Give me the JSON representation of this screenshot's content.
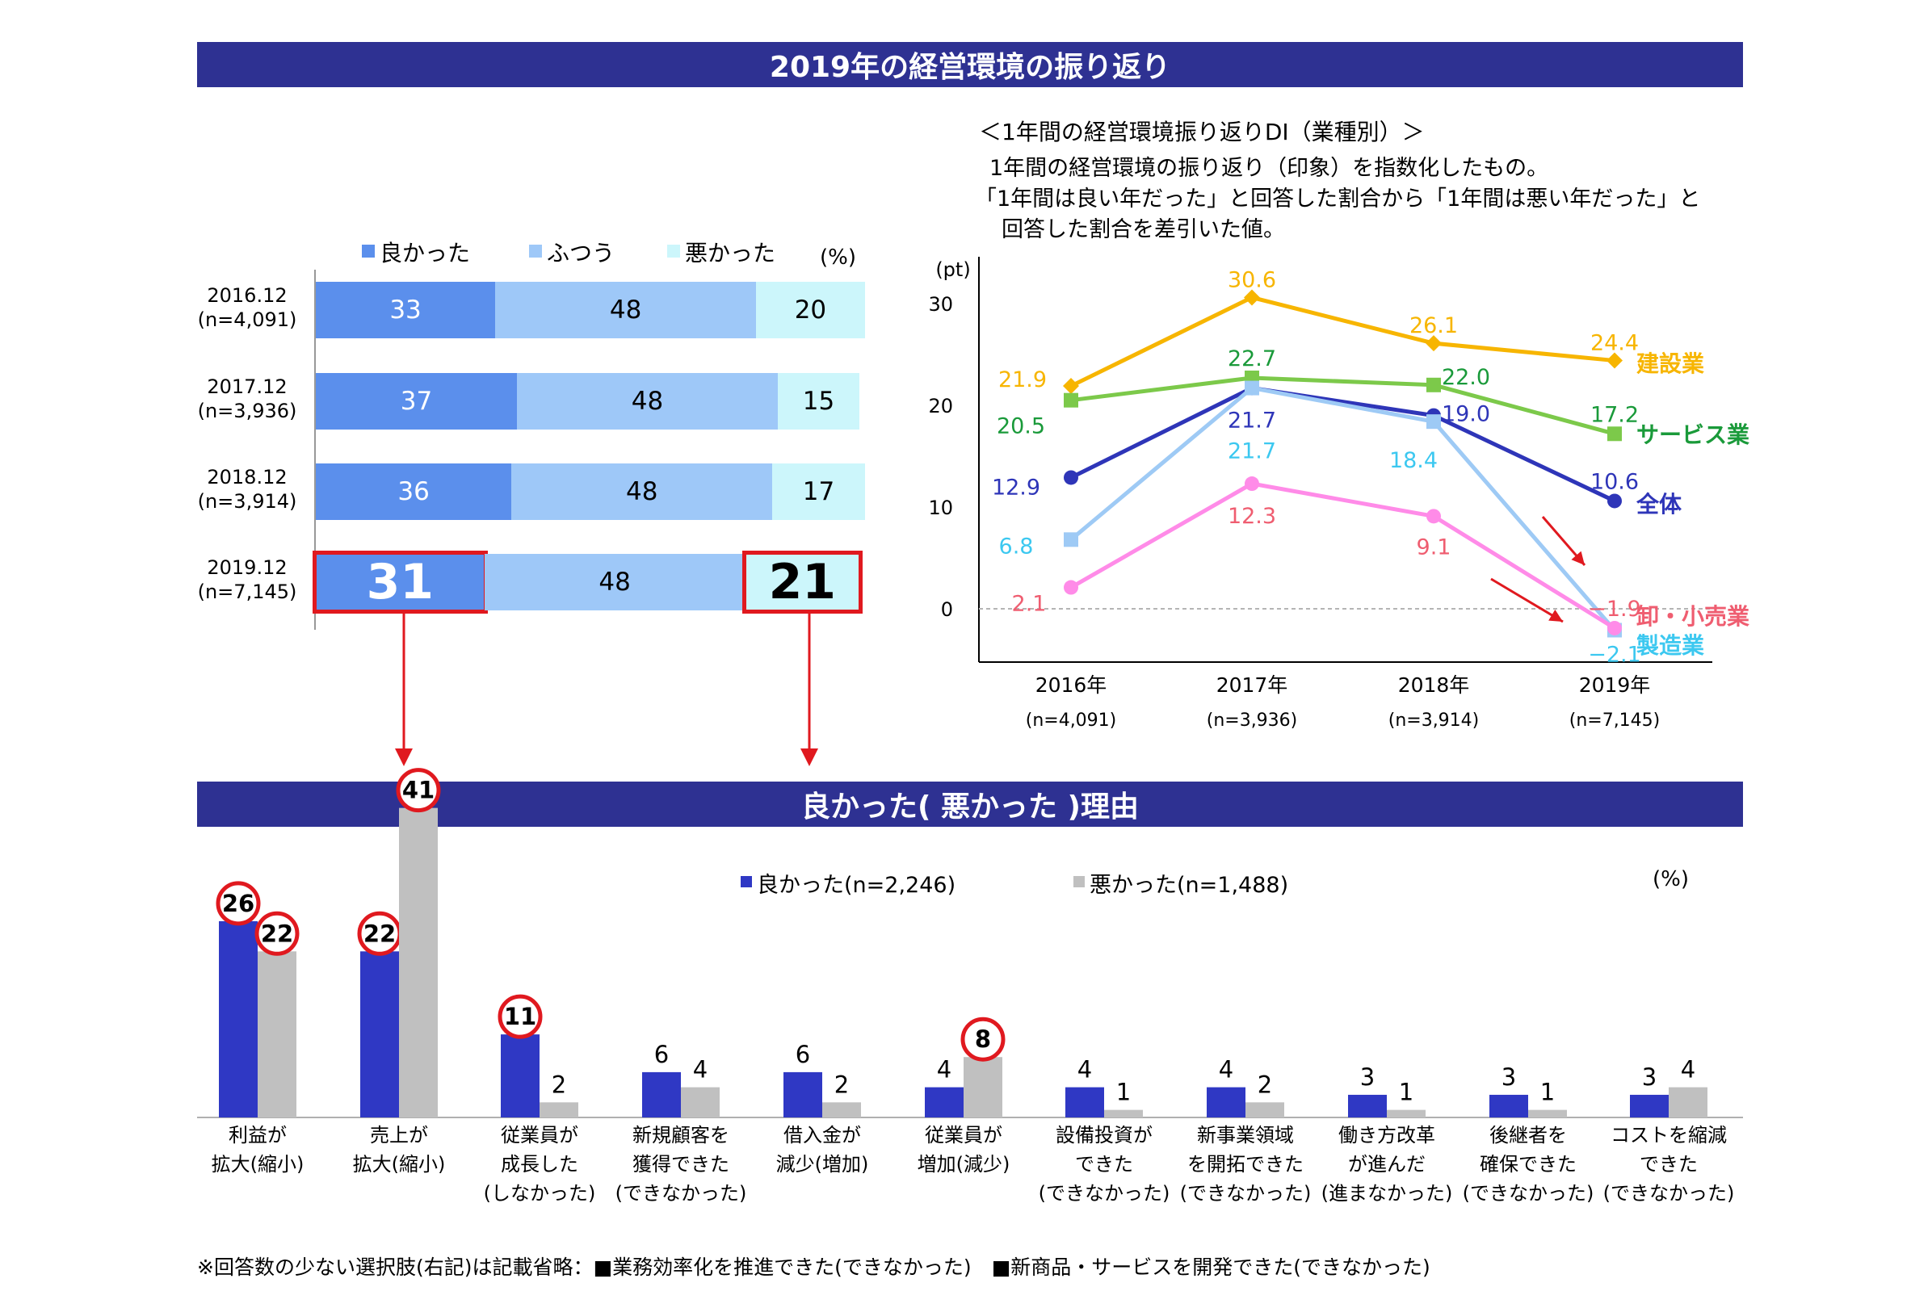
{
  "top_banner": "2019年の経営環境の振り返り",
  "bottom_banner": "良かった( 悪かった )理由",
  "footnote": "※回答数の少ない選択肢(右記)は記載省略：■業務効率化を推進できた(できなかった)　■新商品・サービスを開発できた(できなかった)",
  "colors": {
    "banner": "#2e3192",
    "good": "#5b8fec",
    "neutral": "#9ec8f8",
    "bad": "#ccf6fb",
    "highlight": "#e0191f",
    "good2": "#2f38c4",
    "bad2": "#c0c0c0"
  },
  "chart_data": [
    {
      "type": "bar",
      "orientation": "horizontal-stacked",
      "legend": [
        "良かった",
        "ふつう",
        "悪かった"
      ],
      "unit": "(%)",
      "categories": [
        "2016.12",
        "2017.12",
        "2018.12",
        "2019.12"
      ],
      "category_n": [
        "(n=4,091)",
        "(n=3,936)",
        "(n=3,914)",
        "(n=7,145)"
      ],
      "series": [
        {
          "name": "良かった",
          "values": [
            33,
            37,
            36,
            31
          ]
        },
        {
          "name": "ふつう",
          "values": [
            48,
            48,
            48,
            48
          ]
        },
        {
          "name": "悪かった",
          "values": [
            20,
            15,
            17,
            21
          ]
        }
      ],
      "highlighted": [
        "31",
        "21"
      ]
    },
    {
      "type": "line",
      "title": "＜1年間の経営環境振り返りDI（業種別）＞",
      "description": [
        "1年間の経営環境の振り返り（印象）を指数化したもの。",
        "「1年間は良い年だった」と回答した割合から「1年間は悪い年だった」と",
        "回答した割合を差引いた値。"
      ],
      "ylabel": "(pt)",
      "ylim": [
        -5,
        35
      ],
      "yticks": [
        "30",
        "20",
        "10",
        "0"
      ],
      "x": [
        "2016年",
        "2017年",
        "2018年",
        "2019年"
      ],
      "x_n": [
        "(n=4,091)",
        "(n=3,936)",
        "(n=3,914)",
        "(n=7,145)"
      ],
      "series": [
        {
          "name": "建設業",
          "color": "#f7b500",
          "marker": "diamond",
          "values": [
            21.9,
            30.6,
            26.1,
            24.4
          ],
          "labels": [
            "21.9",
            "30.6",
            "26.1",
            "24.4"
          ]
        },
        {
          "name": "サービス業",
          "color": "#7cc94a",
          "marker": "square",
          "label_color": "#1a9a3a",
          "values": [
            20.5,
            22.7,
            22.0,
            17.2
          ],
          "labels": [
            "20.5",
            "22.7",
            "22.0",
            "17.2"
          ]
        },
        {
          "name": "全体",
          "color": "#2e35b8",
          "marker": "circle",
          "values": [
            12.9,
            21.7,
            19.0,
            10.6
          ],
          "labels": [
            "12.9",
            "21.7",
            "19.0",
            "10.6"
          ]
        },
        {
          "name": "製造業",
          "color": "#9ecaf5",
          "marker": "square",
          "label_color": "#3cc8f0",
          "values": [
            6.8,
            21.7,
            18.4,
            -2.1
          ],
          "labels": [
            "6.8",
            "21.7",
            "18.4",
            "−2.1"
          ]
        },
        {
          "name": "卸・小売業",
          "color": "#ff8be8",
          "marker": "circle",
          "label_color": "#ef5d70",
          "values": [
            2.1,
            12.3,
            9.1,
            -1.9
          ],
          "labels": [
            "2.1",
            "12.3",
            "9.1",
            "−1.9"
          ]
        }
      ]
    },
    {
      "type": "bar",
      "legend": [
        "良かった(n=2,246)",
        "悪かった(n=1,488)"
      ],
      "unit": "(%)",
      "categories": [
        [
          "利益が",
          "拡大(縮小)"
        ],
        [
          "売上が",
          "拡大(縮小)"
        ],
        [
          "従業員が",
          "成長した",
          "(しなかった)"
        ],
        [
          "新規顧客を",
          "獲得できた",
          "(できなかった)"
        ],
        [
          "借入金が",
          "減少(増加)"
        ],
        [
          "従業員が",
          "増加(減少)"
        ],
        [
          "設備投資が",
          "できた",
          "(できなかった)"
        ],
        [
          "新事業領域",
          "を開拓できた",
          "(できなかった)"
        ],
        [
          "働き方改革",
          "が進んだ",
          "(進まなかった)"
        ],
        [
          "後継者を",
          "確保できた",
          "(できなかった)"
        ],
        [
          "コストを縮減",
          "できた",
          "(できなかった)"
        ]
      ],
      "series": [
        {
          "name": "良かった",
          "values": [
            26,
            22,
            11,
            6,
            6,
            4,
            4,
            4,
            3,
            3,
            3
          ],
          "labels": [
            "26",
            "22",
            "11",
            "6",
            "6",
            "4",
            "4",
            "4",
            "3",
            "3",
            "3"
          ]
        },
        {
          "name": "悪かった",
          "values": [
            22,
            41,
            2,
            4,
            2,
            8,
            1,
            2,
            1,
            1,
            4
          ],
          "labels": [
            "22",
            "41",
            "2",
            "4",
            "2",
            "8",
            "1",
            "2",
            "1",
            "1",
            "4"
          ]
        }
      ],
      "circled": [
        "26",
        "22",
        "22",
        "41",
        "11",
        "8"
      ]
    }
  ]
}
